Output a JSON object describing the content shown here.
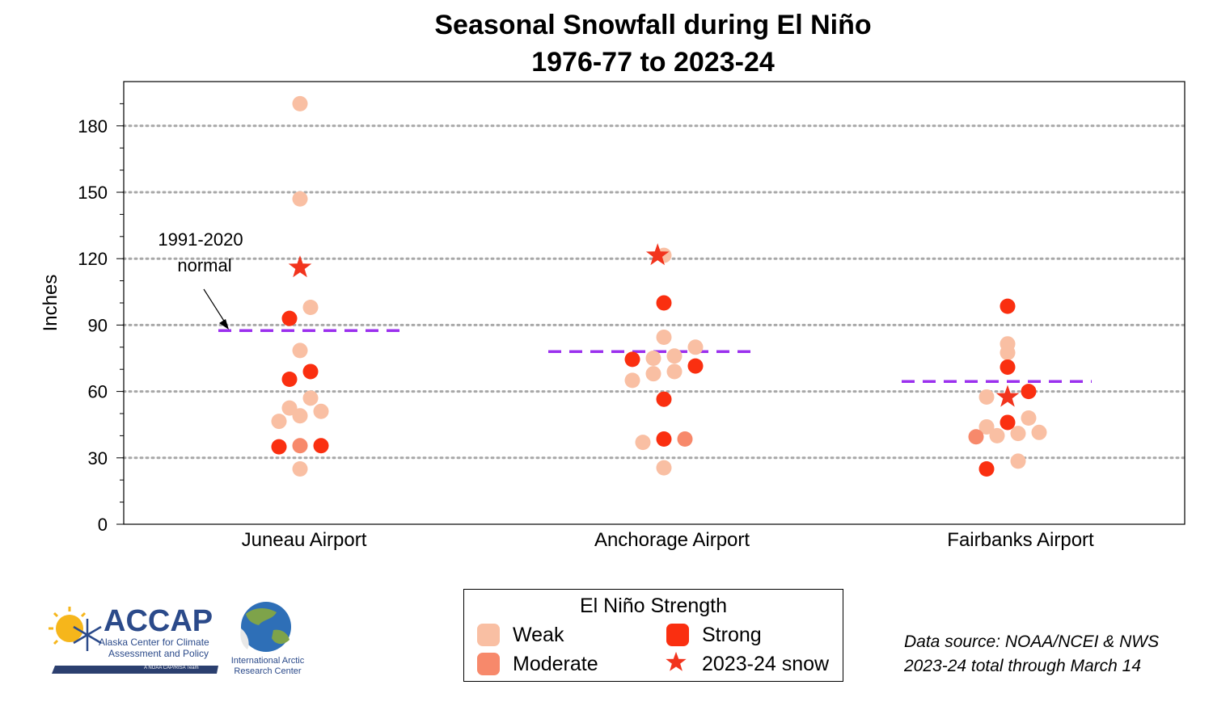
{
  "title_line1": "Seasonal Snowfall during El Niño",
  "title_line2": "1976-77 to 2023-24",
  "annotation": {
    "line1": "1991-2020",
    "line2": "normal"
  },
  "legend": {
    "title": "El Niño Strength",
    "weak": "Weak",
    "moderate": "Moderate",
    "strong": "Strong",
    "star": "2023-24 snow"
  },
  "source": {
    "line1": "Data source: NOAA/NCEI & NWS",
    "line2": "2023-24 total through March 14"
  },
  "logos": {
    "accap_name": "ACCAP",
    "accap_line1": "Alaska Center for Climate",
    "accap_line2": "Assessment and Policy",
    "accap_tagline": "A NOAA CAP/RISA Team",
    "iarc_line1": "International Arctic",
    "iarc_line2": "Research Center"
  },
  "colors": {
    "weak": "#f9bfa3",
    "moderate": "#f7896b",
    "strong": "#fa2f10",
    "star": "#f2341d",
    "normal": "#9b30ee",
    "grid": "#a8a8a8"
  },
  "chart_data": {
    "type": "scatter",
    "title": "Seasonal Snowfall during El Niño 1976-77 to 2023-24",
    "ylabel": "Inches",
    "ylim": [
      0,
      200
    ],
    "yticks": [
      0,
      30,
      60,
      90,
      120,
      150,
      180
    ],
    "grid": "horizontal dotted",
    "categories": [
      "Juneau Airport",
      "Anchorage Airport",
      "Fairbanks Airport"
    ],
    "normals": [
      87.5,
      78,
      64.5
    ],
    "points": [
      {
        "station": 0,
        "offset": 0,
        "value": 190,
        "strength": "weak"
      },
      {
        "station": 0,
        "offset": 0,
        "value": 147,
        "strength": "weak"
      },
      {
        "station": 0,
        "offset": 0.5,
        "value": 98,
        "strength": "weak"
      },
      {
        "station": 0,
        "offset": -0.5,
        "value": 93,
        "strength": "strong"
      },
      {
        "station": 0,
        "offset": 0,
        "value": 78.5,
        "strength": "weak"
      },
      {
        "station": 0,
        "offset": 0.5,
        "value": 69,
        "strength": "strong"
      },
      {
        "station": 0,
        "offset": -0.5,
        "value": 65.5,
        "strength": "strong"
      },
      {
        "station": 0,
        "offset": 0.5,
        "value": 57,
        "strength": "weak"
      },
      {
        "station": 0,
        "offset": -0.5,
        "value": 52.5,
        "strength": "weak"
      },
      {
        "station": 0,
        "offset": 1,
        "value": 51,
        "strength": "weak"
      },
      {
        "station": 0,
        "offset": 0,
        "value": 49,
        "strength": "weak"
      },
      {
        "station": 0,
        "offset": -1,
        "value": 46.5,
        "strength": "weak"
      },
      {
        "station": 0,
        "offset": 1,
        "value": 35.5,
        "strength": "strong"
      },
      {
        "station": 0,
        "offset": 0,
        "value": 35.5,
        "strength": "moderate"
      },
      {
        "station": 0,
        "offset": -1,
        "value": 35,
        "strength": "strong"
      },
      {
        "station": 0,
        "offset": 0,
        "value": 25,
        "strength": "weak"
      },
      {
        "station": 1,
        "offset": 0,
        "value": 121.5,
        "strength": "weak"
      },
      {
        "station": 1,
        "offset": 0,
        "value": 100,
        "strength": "strong"
      },
      {
        "station": 1,
        "offset": 0,
        "value": 84.5,
        "strength": "weak"
      },
      {
        "station": 1,
        "offset": 1.5,
        "value": 80,
        "strength": "weak"
      },
      {
        "station": 1,
        "offset": 0.5,
        "value": 76,
        "strength": "weak"
      },
      {
        "station": 1,
        "offset": -0.5,
        "value": 75,
        "strength": "weak"
      },
      {
        "station": 1,
        "offset": -1.5,
        "value": 74.5,
        "strength": "strong"
      },
      {
        "station": 1,
        "offset": 1.5,
        "value": 71.5,
        "strength": "strong"
      },
      {
        "station": 1,
        "offset": 0.5,
        "value": 69,
        "strength": "weak"
      },
      {
        "station": 1,
        "offset": -0.5,
        "value": 68,
        "strength": "weak"
      },
      {
        "station": 1,
        "offset": -1.5,
        "value": 65,
        "strength": "weak"
      },
      {
        "station": 1,
        "offset": 0,
        "value": 56.5,
        "strength": "strong"
      },
      {
        "station": 1,
        "offset": 0,
        "value": 38.5,
        "strength": "strong"
      },
      {
        "station": 1,
        "offset": 1,
        "value": 38.5,
        "strength": "moderate"
      },
      {
        "station": 1,
        "offset": -1,
        "value": 37,
        "strength": "weak"
      },
      {
        "station": 1,
        "offset": 0,
        "value": 25.5,
        "strength": "weak"
      },
      {
        "station": 2,
        "offset": 0,
        "value": 98.5,
        "strength": "strong"
      },
      {
        "station": 2,
        "offset": 0,
        "value": 81.5,
        "strength": "weak"
      },
      {
        "station": 2,
        "offset": 0,
        "value": 77.5,
        "strength": "weak"
      },
      {
        "station": 2,
        "offset": 0,
        "value": 71,
        "strength": "strong"
      },
      {
        "station": 2,
        "offset": 1,
        "value": 60,
        "strength": "strong"
      },
      {
        "station": 2,
        "offset": -1,
        "value": 57.5,
        "strength": "weak"
      },
      {
        "station": 2,
        "offset": 1,
        "value": 48,
        "strength": "weak"
      },
      {
        "station": 2,
        "offset": 0,
        "value": 46,
        "strength": "strong"
      },
      {
        "station": 2,
        "offset": -1,
        "value": 44,
        "strength": "weak"
      },
      {
        "station": 2,
        "offset": 1.5,
        "value": 41.5,
        "strength": "weak"
      },
      {
        "station": 2,
        "offset": 0.5,
        "value": 41,
        "strength": "weak"
      },
      {
        "station": 2,
        "offset": -0.5,
        "value": 40,
        "strength": "weak"
      },
      {
        "station": 2,
        "offset": -1.5,
        "value": 39.5,
        "strength": "moderate"
      },
      {
        "station": 2,
        "offset": 0.5,
        "value": 28.5,
        "strength": "weak"
      },
      {
        "station": 2,
        "offset": -1,
        "value": 25,
        "strength": "strong"
      }
    ],
    "stars_2023_24": [
      {
        "station": 0,
        "offset": 0,
        "value": 116
      },
      {
        "station": 1,
        "offset": -0.3,
        "value": 121.5
      },
      {
        "station": 2,
        "offset": 0,
        "value": 57.5
      }
    ]
  }
}
